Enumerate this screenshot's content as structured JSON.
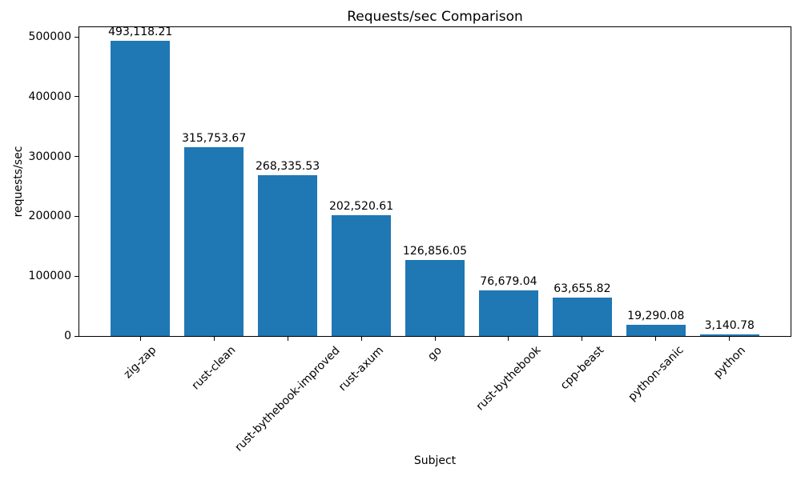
{
  "chart_data": {
    "type": "bar",
    "title": "Requests/sec Comparison",
    "xlabel": "Subject",
    "ylabel": "requests/sec",
    "categories": [
      "zig-zap",
      "rust-clean",
      "rust-bythebook-improved",
      "rust-axum",
      "go",
      "rust-bythebook",
      "cpp-beast",
      "python-sanic",
      "python"
    ],
    "values": [
      493118.21,
      315753.67,
      268335.53,
      202520.61,
      126856.05,
      76679.04,
      63655.82,
      19290.08,
      3140.78
    ],
    "value_labels": [
      "493,118.21",
      "315,753.67",
      "268,335.53",
      "202,520.61",
      "126,856.05",
      "76,679.04",
      "63,655.82",
      "19,290.08",
      "3,140.78"
    ],
    "yticks": [
      0,
      100000,
      200000,
      300000,
      400000,
      500000
    ],
    "ytick_labels": [
      "0",
      "100000",
      "200000",
      "300000",
      "400000",
      "500000"
    ],
    "ylim": [
      0,
      517000
    ],
    "xtick_rotation": 45,
    "grid": false,
    "legend": "none",
    "bar_color": "#1f77b4",
    "axis_color": "#000000",
    "text_color": "#000000",
    "background_color": "#ffffff"
  }
}
